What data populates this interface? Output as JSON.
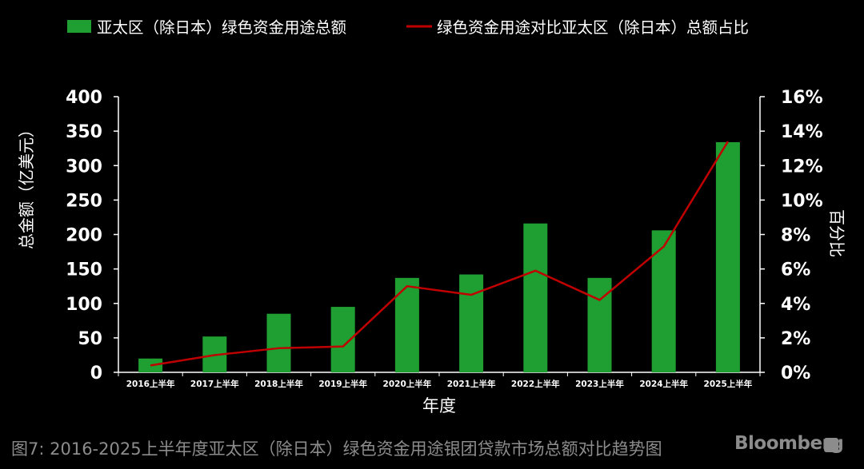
{
  "chart_data": {
    "type": "bar",
    "categories": [
      "2016上半年",
      "2017上半年",
      "2018上半年",
      "2019上半年",
      "2020上半年",
      "2021上半年",
      "2022上半年",
      "2023上半年",
      "2024上半年",
      "2025上半年"
    ],
    "series": [
      {
        "name": "亚太区（除日本）绿色资金用途总额",
        "type": "bar",
        "axis": "left",
        "color": "#1f9e32",
        "values": [
          20,
          52,
          85,
          95,
          137,
          142,
          216,
          137,
          206,
          334
        ]
      },
      {
        "name": "绿色资金用途对比亚太区（除日本）总额占比",
        "type": "line",
        "axis": "right",
        "color": "#c00000",
        "values": [
          0.4,
          1.0,
          1.4,
          1.5,
          5.0,
          4.5,
          5.9,
          4.2,
          7.3,
          13.4
        ]
      }
    ],
    "xlabel": "年度",
    "ylabel": "总金额（亿美元）",
    "ylabel_right": "百分比",
    "ylim": [
      0,
      400
    ],
    "y_ticks": [
      "0",
      "50",
      "100",
      "150",
      "200",
      "250",
      "300",
      "350",
      "400"
    ],
    "ylim_right": [
      0,
      16
    ],
    "y_ticks_right": [
      "0%",
      "2%",
      "4%",
      "6%",
      "8%",
      "10%",
      "12%",
      "14%",
      "16%"
    ],
    "grid": false,
    "legend": "top"
  },
  "caption": "图7: 2016-2025上半年度亚太区（除日本）绿色资金用途银团贷款市场总额对比趋势图",
  "brand": "Bloomberg"
}
